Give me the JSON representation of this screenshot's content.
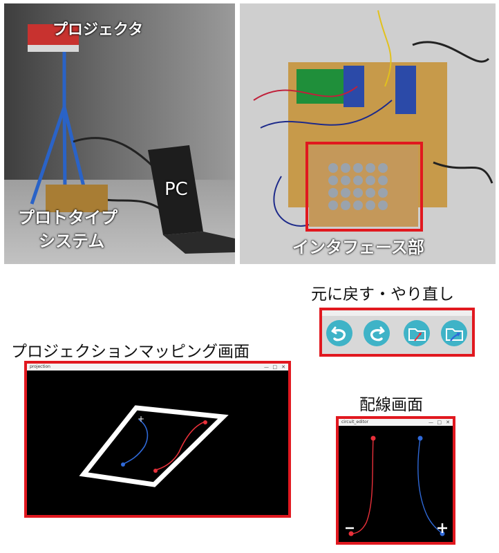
{
  "photos": {
    "left": {
      "label_projector": "プロジェクタ",
      "label_pc": "PC",
      "label_prototype_1": "プロトタイプ",
      "label_prototype_2": "システム"
    },
    "right": {
      "label_interface": "インタフェース部"
    }
  },
  "sections": {
    "toolbar_caption": "元に戻す・やり直し",
    "projection_caption": "プロジェクションマッピング画面",
    "wiring_caption": "配線画面"
  },
  "projection_window": {
    "title": "projection"
  },
  "wiring_window": {
    "title": "circuit_editor"
  },
  "toolbar": {
    "buttons": [
      {
        "icon": "undo-icon"
      },
      {
        "icon": "redo-icon"
      },
      {
        "icon": "folder-open-icon"
      },
      {
        "icon": "folder-save-icon"
      }
    ]
  },
  "colors": {
    "frame_red": "#e1181f",
    "toolbar_teal": "#3fb3c7",
    "wire_red": "#e8303a",
    "wire_blue": "#2f69d8"
  }
}
